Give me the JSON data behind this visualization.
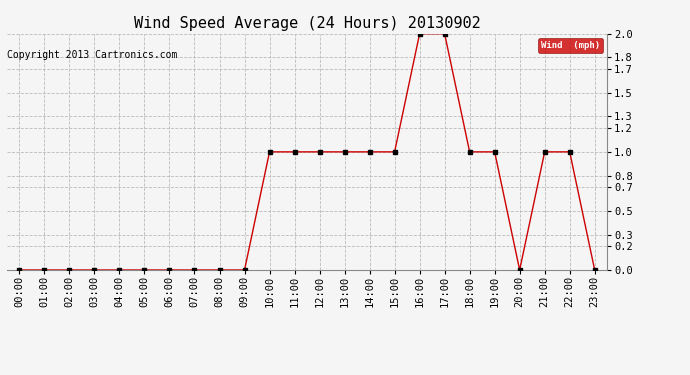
{
  "title": "Wind Speed Average (24 Hours) 20130902",
  "copyright": "Copyright 2013 Cartronics.com",
  "legend_label": "Wind  (mph)",
  "x_labels": [
    "00:00",
    "01:00",
    "02:00",
    "03:00",
    "04:00",
    "05:00",
    "06:00",
    "07:00",
    "08:00",
    "09:00",
    "10:00",
    "11:00",
    "12:00",
    "13:00",
    "14:00",
    "15:00",
    "16:00",
    "17:00",
    "18:00",
    "19:00",
    "20:00",
    "21:00",
    "22:00",
    "23:00"
  ],
  "y_values": [
    0,
    0,
    0,
    0,
    0,
    0,
    0,
    0,
    0,
    0,
    1,
    1,
    1,
    1,
    1,
    1,
    2,
    2,
    1,
    1,
    0,
    1,
    1,
    0
  ],
  "y_ticks": [
    0.0,
    0.2,
    0.3,
    0.5,
    0.7,
    0.8,
    1.0,
    1.2,
    1.3,
    1.5,
    1.7,
    1.8,
    2.0
  ],
  "ylim": [
    0.0,
    2.0
  ],
  "line_color": "#cc0000",
  "marker_color": "#000000",
  "bg_color": "#f5f5f5",
  "grid_color": "#bbbbbb",
  "legend_bg": "#cc0000",
  "legend_text_color": "#ffffff",
  "title_fontsize": 11,
  "copyright_fontsize": 7,
  "tick_fontsize": 7.5
}
